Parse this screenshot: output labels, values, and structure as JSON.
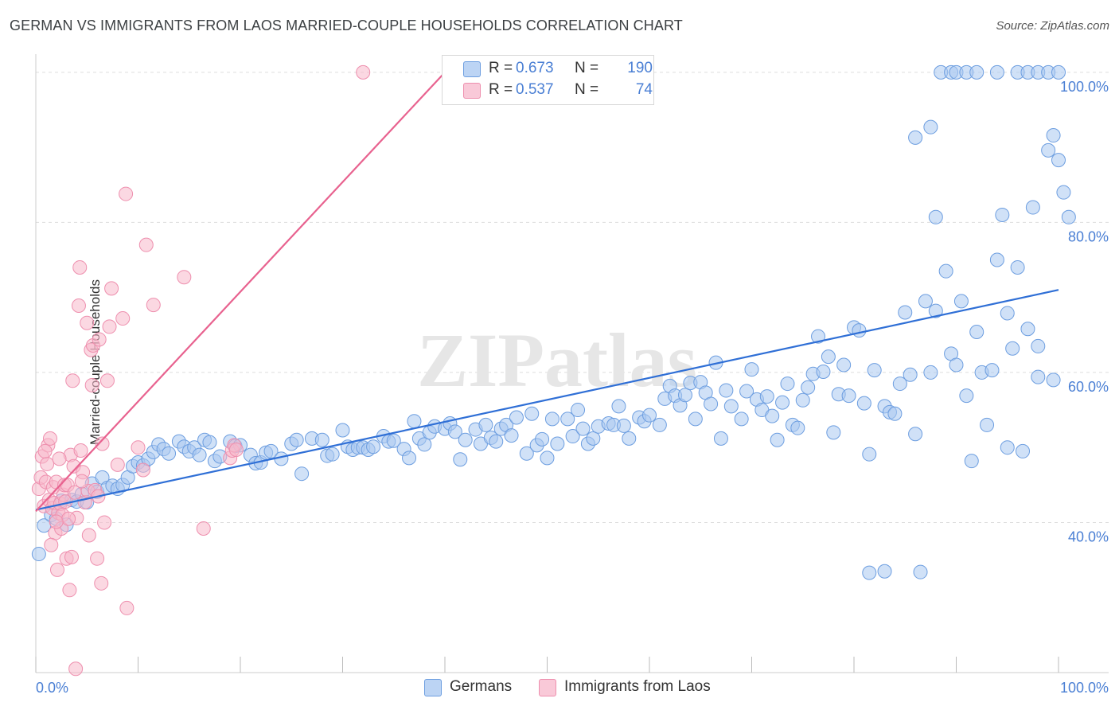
{
  "title": "GERMAN VS IMMIGRANTS FROM LAOS MARRIED-COUPLE HOUSEHOLDS CORRELATION CHART",
  "source": "Source: ZipAtlas.com",
  "watermark": "ZIPatlas",
  "legend": {
    "rows": [
      {
        "r_label": "R =",
        "r_value": "0.673",
        "n_label": "N =",
        "n_value": "190"
      },
      {
        "r_label": "R =",
        "r_value": "0.537",
        "n_label": "N =",
        "n_value": "74"
      }
    ]
  },
  "bottom_legend": [
    "Germans",
    "Immigrants from Laos"
  ],
  "colors": {
    "germans_fill": "#a9c8f0",
    "germans_stroke": "#6d9ee0",
    "germans_line": "#2f6fd6",
    "laos_fill": "#f7b8cb",
    "laos_stroke": "#ee8fae",
    "laos_line": "#e8628f",
    "tick_label": "#4a7fd4",
    "grid": "#dddddd"
  },
  "chart_data": {
    "type": "scatter",
    "title": "GERMAN VS IMMIGRANTS FROM LAOS MARRIED-COUPLE HOUSEHOLDS CORRELATION CHART",
    "xlabel": "",
    "ylabel": "Married-couple Households",
    "xlim": [
      0,
      100
    ],
    "ylim": [
      20,
      102
    ],
    "x_tick_labels": [
      "0.0%",
      "100.0%"
    ],
    "y_ticks": [
      40,
      60,
      80,
      100
    ],
    "y_tick_labels": [
      "40.0%",
      "60.0%",
      "80.0%",
      "100.0%"
    ],
    "grid": true,
    "legend_position": "top-center",
    "series": [
      {
        "name": "Germans",
        "r": 0.673,
        "n": 190,
        "trend": {
          "x": [
            0,
            100
          ],
          "y": [
            41.7,
            71.0
          ]
        },
        "points": [
          [
            0.3,
            35.8
          ],
          [
            0.8,
            39.6
          ],
          [
            1.5,
            41.0
          ],
          [
            2.0,
            40.5
          ],
          [
            2.5,
            42.9
          ],
          [
            3.0,
            39.7
          ],
          [
            3.5,
            43.0
          ],
          [
            4.0,
            42.8
          ],
          [
            4.5,
            43.8
          ],
          [
            5.0,
            42.7
          ],
          [
            5.5,
            45.2
          ],
          [
            6.0,
            44.1
          ],
          [
            6.5,
            46.0
          ],
          [
            7.0,
            44.6
          ],
          [
            7.5,
            44.9
          ],
          [
            8.0,
            44.5
          ],
          [
            8.5,
            45.0
          ],
          [
            9.0,
            46.0
          ],
          [
            9.5,
            47.5
          ],
          [
            10.0,
            48.0
          ],
          [
            10.5,
            47.6
          ],
          [
            11.0,
            48.5
          ],
          [
            11.5,
            49.4
          ],
          [
            12.0,
            50.4
          ],
          [
            12.5,
            49.8
          ],
          [
            13.0,
            49.2
          ],
          [
            14.0,
            50.8
          ],
          [
            14.5,
            50.1
          ],
          [
            15.0,
            49.5
          ],
          [
            15.5,
            50.0
          ],
          [
            16.0,
            49.0
          ],
          [
            16.5,
            51.0
          ],
          [
            17.0,
            50.7
          ],
          [
            17.5,
            48.2
          ],
          [
            18.0,
            48.8
          ],
          [
            19.0,
            50.8
          ],
          [
            19.5,
            50.2
          ],
          [
            20.0,
            50.3
          ],
          [
            21.0,
            49.0
          ],
          [
            21.5,
            47.9
          ],
          [
            22.0,
            48.0
          ],
          [
            22.5,
            49.3
          ],
          [
            23.0,
            49.5
          ],
          [
            24.0,
            48.5
          ],
          [
            25.0,
            50.5
          ],
          [
            25.5,
            51.0
          ],
          [
            26.0,
            46.5
          ],
          [
            27.0,
            51.2
          ],
          [
            28.0,
            51.0
          ],
          [
            28.5,
            48.9
          ],
          [
            29.0,
            49.1
          ],
          [
            30.0,
            52.3
          ],
          [
            30.5,
            50.1
          ],
          [
            31.0,
            49.7
          ],
          [
            31.5,
            50.0
          ],
          [
            32.0,
            50.0
          ],
          [
            32.5,
            49.7
          ],
          [
            33.0,
            50.1
          ],
          [
            34.0,
            51.5
          ],
          [
            34.5,
            50.8
          ],
          [
            35.0,
            50.9
          ],
          [
            36.0,
            49.8
          ],
          [
            36.5,
            48.6
          ],
          [
            37.0,
            53.5
          ],
          [
            37.5,
            51.2
          ],
          [
            38.0,
            50.4
          ],
          [
            38.5,
            52.0
          ],
          [
            39.0,
            52.8
          ],
          [
            40.0,
            52.5
          ],
          [
            40.5,
            53.2
          ],
          [
            41.0,
            52.1
          ],
          [
            41.5,
            48.4
          ],
          [
            42.0,
            51.0
          ],
          [
            43.0,
            52.4
          ],
          [
            43.5,
            50.5
          ],
          [
            44.0,
            53.0
          ],
          [
            44.5,
            51.3
          ],
          [
            45.0,
            50.8
          ],
          [
            45.5,
            52.5
          ],
          [
            46.0,
            53.0
          ],
          [
            46.5,
            51.6
          ],
          [
            47.0,
            54.0
          ],
          [
            48.0,
            49.2
          ],
          [
            48.5,
            54.5
          ],
          [
            49.0,
            50.3
          ],
          [
            49.5,
            51.1
          ],
          [
            50.0,
            48.6
          ],
          [
            50.5,
            53.8
          ],
          [
            51.0,
            50.5
          ],
          [
            52.0,
            53.8
          ],
          [
            52.5,
            51.5
          ],
          [
            53.0,
            55.0
          ],
          [
            53.5,
            52.5
          ],
          [
            54.0,
            50.5
          ],
          [
            54.5,
            51.2
          ],
          [
            55.0,
            52.8
          ],
          [
            56.0,
            53.2
          ],
          [
            56.5,
            53.0
          ],
          [
            57.0,
            55.5
          ],
          [
            57.5,
            52.9
          ],
          [
            58.0,
            51.2
          ],
          [
            59.0,
            54.0
          ],
          [
            59.5,
            53.5
          ],
          [
            60.0,
            54.3
          ],
          [
            61.0,
            53.0
          ],
          [
            61.5,
            56.5
          ],
          [
            62.0,
            58.2
          ],
          [
            62.5,
            56.9
          ],
          [
            63.0,
            55.6
          ],
          [
            63.5,
            57.0
          ],
          [
            64.0,
            58.6
          ],
          [
            64.5,
            53.8
          ],
          [
            65.0,
            58.7
          ],
          [
            65.5,
            57.3
          ],
          [
            66.0,
            55.8
          ],
          [
            66.5,
            61.3
          ],
          [
            67.0,
            51.2
          ],
          [
            67.5,
            57.6
          ],
          [
            68.0,
            55.5
          ],
          [
            69.0,
            53.8
          ],
          [
            69.5,
            57.5
          ],
          [
            70.0,
            60.4
          ],
          [
            70.5,
            56.4
          ],
          [
            71.0,
            55.0
          ],
          [
            71.5,
            56.8
          ],
          [
            72.0,
            54.2
          ],
          [
            72.5,
            51.0
          ],
          [
            73.0,
            56.0
          ],
          [
            73.5,
            58.5
          ],
          [
            74.0,
            53.0
          ],
          [
            74.5,
            52.6
          ],
          [
            75.0,
            56.3
          ],
          [
            75.5,
            58.0
          ],
          [
            76.0,
            59.8
          ],
          [
            76.5,
            64.8
          ],
          [
            77.0,
            60.1
          ],
          [
            77.5,
            62.1
          ],
          [
            78.0,
            52.0
          ],
          [
            78.5,
            57.1
          ],
          [
            79.0,
            61.0
          ],
          [
            79.5,
            56.9
          ],
          [
            80.0,
            66.0
          ],
          [
            80.5,
            65.6
          ],
          [
            81.0,
            55.9
          ],
          [
            81.5,
            49.1
          ],
          [
            82.0,
            60.3
          ],
          [
            83.0,
            55.5
          ],
          [
            83.5,
            54.7
          ],
          [
            84.0,
            54.5
          ],
          [
            84.5,
            58.5
          ],
          [
            85.0,
            68.0
          ],
          [
            85.5,
            59.7
          ],
          [
            86.0,
            51.8
          ],
          [
            87.0,
            69.5
          ],
          [
            87.5,
            60.0
          ],
          [
            88.0,
            68.2
          ],
          [
            89.0,
            73.5
          ],
          [
            89.5,
            62.5
          ],
          [
            90.0,
            61.0
          ],
          [
            90.5,
            69.5
          ],
          [
            91.0,
            56.9
          ],
          [
            91.5,
            48.2
          ],
          [
            92.0,
            65.4
          ],
          [
            92.5,
            60.0
          ],
          [
            93.0,
            53.0
          ],
          [
            93.5,
            60.3
          ],
          [
            94.0,
            75.0
          ],
          [
            94.5,
            81.0
          ],
          [
            95.0,
            67.9
          ],
          [
            95.5,
            63.2
          ],
          [
            96.0,
            74.0
          ],
          [
            96.5,
            49.5
          ],
          [
            97.0,
            65.8
          ],
          [
            97.5,
            82.0
          ],
          [
            98.0,
            59.4
          ],
          [
            99.0,
            89.6
          ],
          [
            99.5,
            91.6
          ],
          [
            100.0,
            88.3
          ],
          [
            100.5,
            84.0
          ],
          [
            101.0,
            80.7
          ],
          [
            88.0,
            80.7
          ],
          [
            86.0,
            91.3
          ],
          [
            87.5,
            92.7
          ],
          [
            88.5,
            100.0
          ],
          [
            89.5,
            100.0
          ],
          [
            90.0,
            100.0
          ],
          [
            91.0,
            100.0
          ],
          [
            92.0,
            100.0
          ],
          [
            94.0,
            100.0
          ],
          [
            96.0,
            100.0
          ],
          [
            97.0,
            100.0
          ],
          [
            98.0,
            100.0
          ],
          [
            99.0,
            100.0
          ],
          [
            100.0,
            100.0
          ],
          [
            81.5,
            33.3
          ],
          [
            83.0,
            33.5
          ],
          [
            86.5,
            33.4
          ],
          [
            95.0,
            50.0
          ],
          [
            99.5,
            59.0
          ],
          [
            98.0,
            63.5
          ]
        ]
      },
      {
        "name": "Immigrants from Laos",
        "r": 0.537,
        "n": 74,
        "trend": {
          "x": [
            0,
            40
          ],
          "y": [
            41.5,
            100.0
          ]
        },
        "points": [
          [
            0.3,
            44.5
          ],
          [
            0.5,
            46.0
          ],
          [
            0.6,
            48.8
          ],
          [
            0.8,
            42.2
          ],
          [
            1.0,
            45.4
          ],
          [
            1.1,
            47.8
          ],
          [
            1.2,
            50.3
          ],
          [
            1.3,
            43.0
          ],
          [
            1.4,
            51.2
          ],
          [
            1.6,
            41.9
          ],
          [
            1.7,
            44.7
          ],
          [
            1.8,
            42.6
          ],
          [
            1.9,
            38.6
          ],
          [
            2.0,
            45.4
          ],
          [
            2.1,
            33.7
          ],
          [
            2.2,
            41.3
          ],
          [
            2.4,
            42.5
          ],
          [
            2.5,
            39.2
          ],
          [
            2.6,
            41.0
          ],
          [
            2.7,
            43.7
          ],
          [
            2.8,
            45.0
          ],
          [
            2.9,
            42.8
          ],
          [
            3.0,
            35.2
          ],
          [
            3.1,
            45.0
          ],
          [
            3.3,
            31.0
          ],
          [
            3.4,
            49.0
          ],
          [
            3.5,
            35.4
          ],
          [
            3.6,
            58.9
          ],
          [
            3.7,
            47.5
          ],
          [
            3.8,
            44.0
          ],
          [
            3.9,
            20.5
          ],
          [
            4.0,
            40.6
          ],
          [
            4.2,
            68.9
          ],
          [
            4.3,
            74.0
          ],
          [
            4.4,
            49.6
          ],
          [
            4.6,
            46.7
          ],
          [
            4.8,
            42.7
          ],
          [
            5.0,
            66.6
          ],
          [
            5.1,
            44.2
          ],
          [
            5.2,
            38.3
          ],
          [
            5.4,
            63.0
          ],
          [
            5.5,
            58.3
          ],
          [
            5.6,
            63.6
          ],
          [
            6.0,
            35.2
          ],
          [
            6.2,
            64.4
          ],
          [
            6.4,
            31.9
          ],
          [
            6.5,
            50.5
          ],
          [
            6.7,
            40.0
          ],
          [
            7.0,
            58.9
          ],
          [
            7.2,
            66.1
          ],
          [
            7.4,
            71.2
          ],
          [
            8.0,
            47.7
          ],
          [
            8.5,
            67.2
          ],
          [
            8.8,
            83.8
          ],
          [
            8.9,
            28.6
          ],
          [
            10.0,
            50.0
          ],
          [
            10.5,
            47.0
          ],
          [
            10.8,
            77.0
          ],
          [
            11.5,
            69.0
          ],
          [
            14.5,
            72.7
          ],
          [
            16.4,
            39.2
          ],
          [
            19.0,
            48.6
          ],
          [
            19.2,
            49.6
          ],
          [
            19.4,
            50.3
          ],
          [
            19.6,
            49.7
          ],
          [
            32.0,
            100.0
          ],
          [
            5.8,
            44.3
          ],
          [
            6.1,
            43.5
          ],
          [
            2.3,
            48.5
          ],
          [
            1.5,
            37.0
          ],
          [
            0.9,
            49.5
          ],
          [
            3.2,
            40.5
          ],
          [
            4.5,
            45.5
          ],
          [
            2.0,
            40.1
          ]
        ]
      }
    ]
  }
}
